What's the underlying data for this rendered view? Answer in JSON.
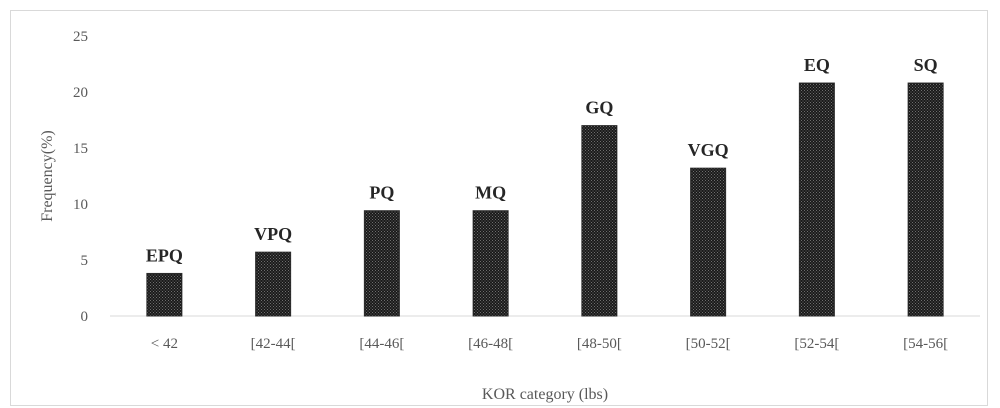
{
  "chart_data": {
    "type": "bar",
    "title": "",
    "xlabel": "KOR category (lbs)",
    "ylabel": "Frequency(%)",
    "ylim": [
      0,
      25
    ],
    "yticks": [
      0,
      5,
      10,
      15,
      20,
      25
    ],
    "grid": false,
    "legend": "none",
    "categories": [
      "< 42",
      "[42-44[",
      "[44-46[",
      "[46-48[",
      "[48-50[",
      "[50-52[",
      "[52-54[",
      "[54-56["
    ],
    "values": [
      3.8,
      5.7,
      9.4,
      9.4,
      17.0,
      13.2,
      20.8,
      20.8
    ],
    "data_labels": [
      "EPQ",
      "VPQ",
      "PQ",
      "MQ",
      "GQ",
      "VGQ",
      "EQ",
      "SQ"
    ],
    "bar_color": "#2b2b2b"
  }
}
